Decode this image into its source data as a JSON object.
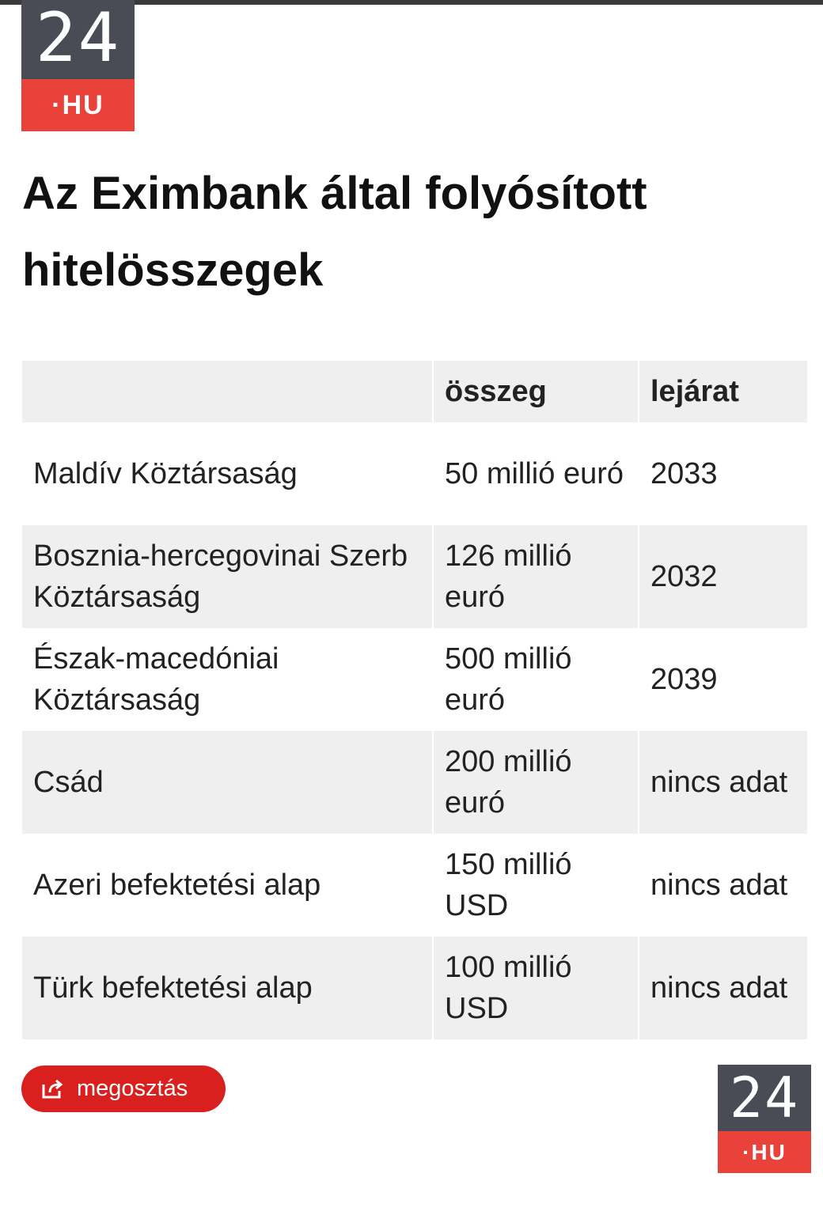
{
  "logo_top": {
    "number": "24",
    "suffix": "·HU"
  },
  "title": "Az Eximbank által folyósított hitelösszegek",
  "table": {
    "header": [
      "összeg",
      "lejárat"
    ],
    "rows": [
      [
        "Maldív Köztársaság",
        "50 millió euró",
        "2033"
      ],
      [
        "Bosznia-hercegovinai Szerb Köztársaság",
        "126 millió euró",
        "2032"
      ],
      [
        "Észak-macedóniai Köztársaság",
        "500 millió euró",
        "2039"
      ],
      [
        "Csád",
        "200 millió euró",
        "nincs adat"
      ],
      [
        "Azeri befektetési alap",
        "150 millió USD",
        "nincs adat"
      ],
      [
        "Türk befektetési alap",
        "100 millió USD",
        "nincs adat"
      ]
    ]
  },
  "share_button": "megosztás",
  "logo_bottom": {
    "number": "24",
    "suffix": "·HU"
  }
}
